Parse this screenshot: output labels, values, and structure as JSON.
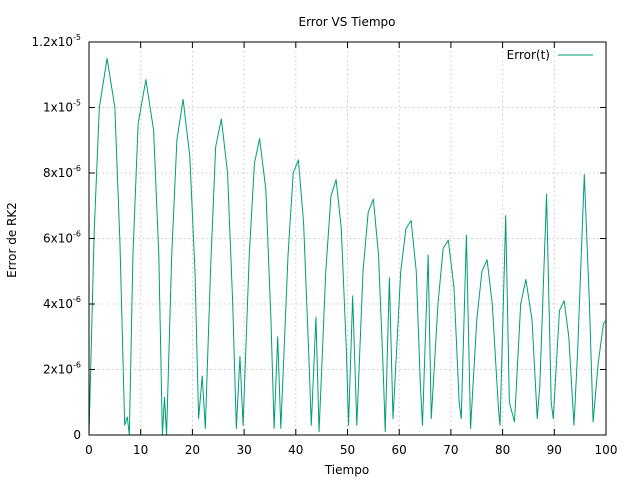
{
  "chart_data": {
    "type": "line",
    "title": "Error VS Tiempo",
    "xlabel": "Tiempo",
    "ylabel": "Error de RK2",
    "xlim": [
      0,
      100
    ],
    "ylim": [
      0,
      1.2e-05
    ],
    "x_ticks": [
      {
        "value": 0,
        "label": "0"
      },
      {
        "value": 10,
        "label": "10"
      },
      {
        "value": 20,
        "label": "20"
      },
      {
        "value": 30,
        "label": "30"
      },
      {
        "value": 40,
        "label": "40"
      },
      {
        "value": 50,
        "label": "50"
      },
      {
        "value": 60,
        "label": "60"
      },
      {
        "value": 70,
        "label": "70"
      },
      {
        "value": 80,
        "label": "80"
      },
      {
        "value": 90,
        "label": "90"
      },
      {
        "value": 100,
        "label": "100"
      }
    ],
    "y_ticks": [
      {
        "value": 0,
        "base": "0",
        "exp": ""
      },
      {
        "value": 2e-06,
        "base": "2x10",
        "exp": "-6"
      },
      {
        "value": 4e-06,
        "base": "4x10",
        "exp": "-6"
      },
      {
        "value": 6e-06,
        "base": "6x10",
        "exp": "-6"
      },
      {
        "value": 8e-06,
        "base": "8x10",
        "exp": "-6"
      },
      {
        "value": 1e-05,
        "base": "1x10",
        "exp": "-5"
      },
      {
        "value": 1.2e-05,
        "base": "1.2x10",
        "exp": "-5"
      }
    ],
    "grid": true,
    "legend_position": "top-right",
    "series": [
      {
        "name": "Error(t)",
        "color": "#009e73",
        "points": [
          [
            0.0,
            0.0
          ],
          [
            1.0,
            6.2e-06
          ],
          [
            2.0,
            1e-05
          ],
          [
            3.5,
            1.15e-05
          ],
          [
            5.0,
            1e-05
          ],
          [
            6.0,
            5.8e-06
          ],
          [
            6.9,
            3e-07
          ],
          [
            7.4,
            5.5e-07
          ],
          [
            7.8,
            0.0
          ],
          [
            8.5,
            5.5e-06
          ],
          [
            9.5,
            9.5e-06
          ],
          [
            11.0,
            1.085e-05
          ],
          [
            12.5,
            9.3e-06
          ],
          [
            13.5,
            5.5e-06
          ],
          [
            14.2,
            0.0
          ],
          [
            14.6,
            1.15e-06
          ],
          [
            15.0,
            0.0
          ],
          [
            16.0,
            5.5e-06
          ],
          [
            17.0,
            9e-06
          ],
          [
            18.2,
            1.025e-05
          ],
          [
            19.5,
            8.5e-06
          ],
          [
            20.5,
            5e-06
          ],
          [
            21.2,
            5e-07
          ],
          [
            21.9,
            1.8e-06
          ],
          [
            22.5,
            2e-07
          ],
          [
            23.5,
            5e-06
          ],
          [
            24.5,
            8.8e-06
          ],
          [
            25.6,
            9.65e-06
          ],
          [
            26.8,
            8e-06
          ],
          [
            27.8,
            4e-06
          ],
          [
            28.5,
            2e-07
          ],
          [
            29.2,
            2.4e-06
          ],
          [
            29.8,
            3e-07
          ],
          [
            31.0,
            5.5e-06
          ],
          [
            32.0,
            8.3e-06
          ],
          [
            33.0,
            9.05e-06
          ],
          [
            34.2,
            7.5e-06
          ],
          [
            35.2,
            3.5e-06
          ],
          [
            35.8,
            2e-07
          ],
          [
            36.5,
            3e-06
          ],
          [
            37.1,
            2e-07
          ],
          [
            38.5,
            5.5e-06
          ],
          [
            39.5,
            8e-06
          ],
          [
            40.5,
            8.4e-06
          ],
          [
            41.5,
            6.5e-06
          ],
          [
            42.5,
            2.5e-06
          ],
          [
            43.0,
            3e-07
          ],
          [
            43.9,
            3.6e-06
          ],
          [
            44.5,
            1e-07
          ],
          [
            45.8,
            5e-06
          ],
          [
            46.8,
            7.3e-06
          ],
          [
            47.8,
            7.8e-06
          ],
          [
            48.8,
            6.3e-06
          ],
          [
            49.8,
            2.5e-06
          ],
          [
            50.2,
            3e-07
          ],
          [
            51.0,
            4.25e-06
          ],
          [
            51.8,
            3e-07
          ],
          [
            53.0,
            5e-06
          ],
          [
            54.0,
            6.8e-06
          ],
          [
            55.0,
            7.2e-06
          ],
          [
            56.0,
            5.5e-06
          ],
          [
            56.9,
            2e-06
          ],
          [
            57.3,
            1e-07
          ],
          [
            58.1,
            4.8e-06
          ],
          [
            58.8,
            5e-07
          ],
          [
            60.3,
            5e-06
          ],
          [
            61.3,
            6.3e-06
          ],
          [
            62.3,
            6.55e-06
          ],
          [
            63.3,
            5e-06
          ],
          [
            64.1,
            1.5e-06
          ],
          [
            64.5,
            3e-07
          ],
          [
            65.6,
            5.5e-06
          ],
          [
            66.2,
            5e-07
          ],
          [
            67.5,
            4e-06
          ],
          [
            68.5,
            5.7e-06
          ],
          [
            69.5,
            5.95e-06
          ],
          [
            70.6,
            4.5e-06
          ],
          [
            71.6,
            1e-06
          ],
          [
            72.0,
            5e-07
          ],
          [
            73.0,
            6.1e-06
          ],
          [
            73.8,
            2e-07
          ],
          [
            75.0,
            3.5e-06
          ],
          [
            76.0,
            5e-06
          ],
          [
            77.0,
            5.35e-06
          ],
          [
            78.0,
            4e-06
          ],
          [
            79.2,
            8e-07
          ],
          [
            79.5,
            3e-07
          ],
          [
            80.6,
            6.7e-06
          ],
          [
            81.3,
            1e-06
          ],
          [
            82.3,
            4e-07
          ],
          [
            83.5,
            4e-06
          ],
          [
            84.5,
            4.75e-06
          ],
          [
            85.7,
            3.5e-06
          ],
          [
            86.7,
            5e-07
          ],
          [
            87.2,
            1.5e-06
          ],
          [
            88.5,
            7.35e-06
          ],
          [
            89.4,
            1e-06
          ],
          [
            89.8,
            5e-07
          ],
          [
            91.0,
            3.8e-06
          ],
          [
            91.9,
            4.1e-06
          ],
          [
            92.8,
            3e-06
          ],
          [
            93.8,
            3e-07
          ],
          [
            94.5,
            2.5e-06
          ],
          [
            95.8,
            7.95e-06
          ],
          [
            96.8,
            4e-06
          ],
          [
            97.5,
            4e-07
          ],
          [
            98.5,
            2.2e-06
          ],
          [
            99.5,
            3.4e-06
          ],
          [
            100.0,
            3.5e-06
          ]
        ]
      }
    ]
  }
}
